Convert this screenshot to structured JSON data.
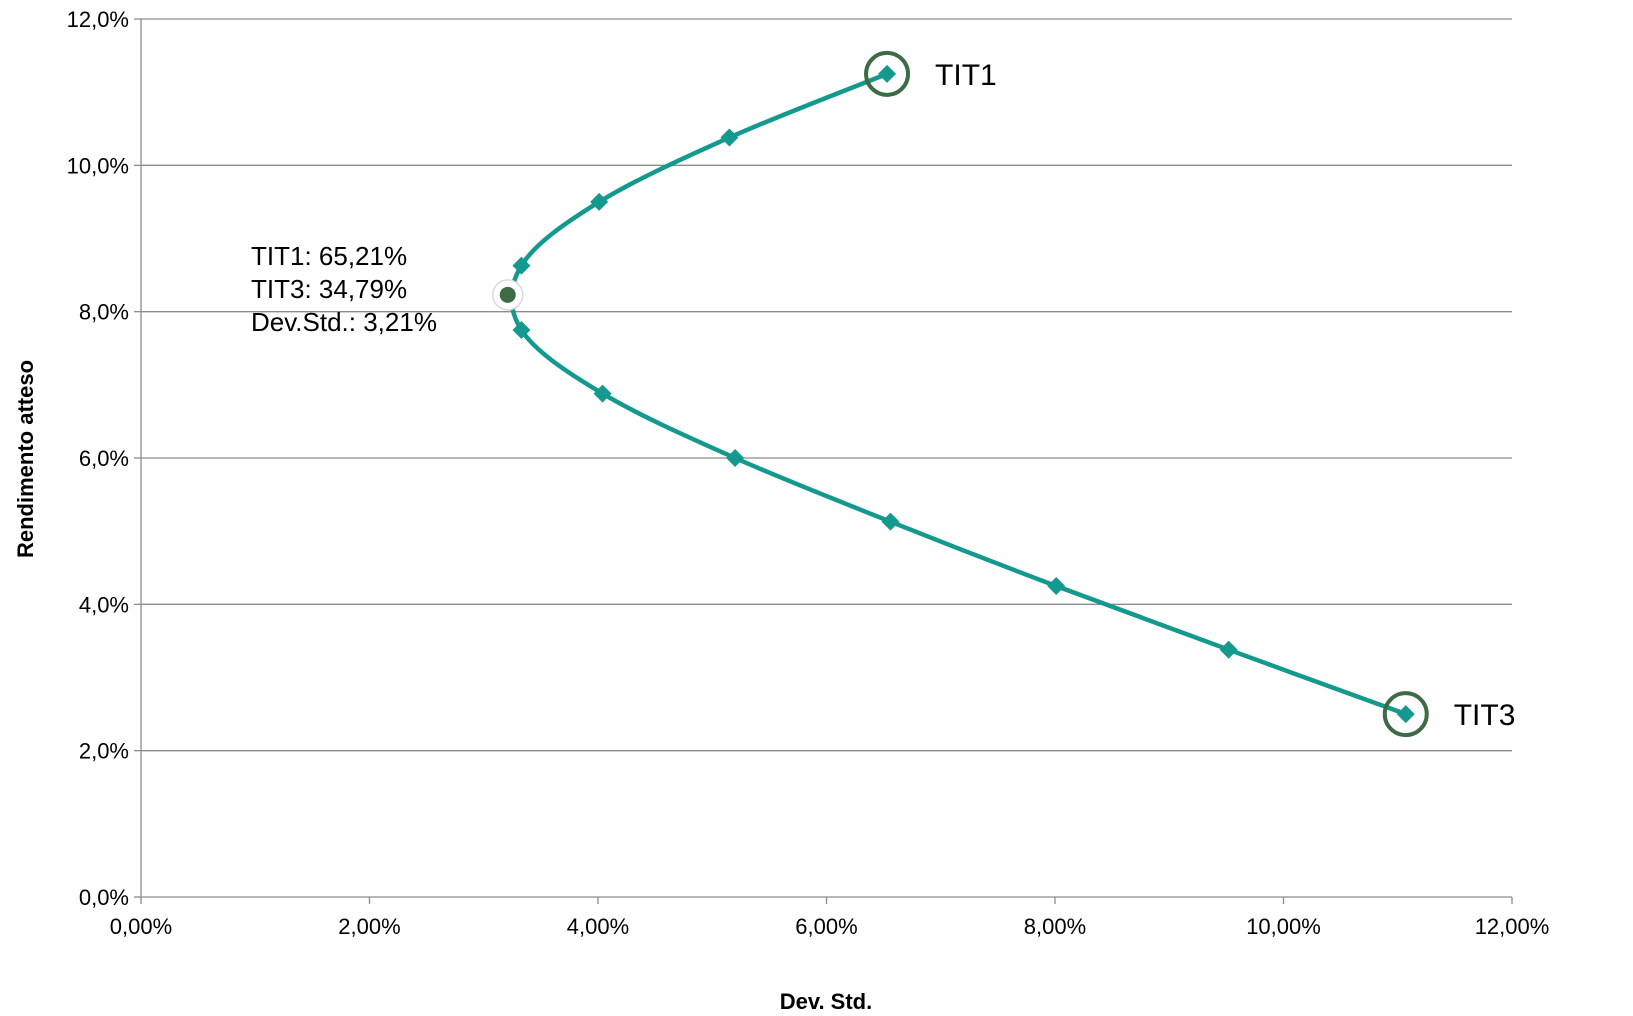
{
  "chart_data": {
    "type": "line",
    "title": "",
    "xlabel": "Dev. Std.",
    "ylabel": "Rendimento atteso",
    "xlim": [
      0,
      0.12
    ],
    "ylim": [
      0,
      0.12
    ],
    "x_ticks": [
      0,
      0.02,
      0.04,
      0.06,
      0.08,
      0.1,
      0.12
    ],
    "x_tick_labels": [
      "0,00%",
      "2,00%",
      "4,00%",
      "6,00%",
      "8,00%",
      "10,00%",
      "12,00%"
    ],
    "y_ticks": [
      0,
      0.02,
      0.04,
      0.06,
      0.08,
      0.1,
      0.12
    ],
    "y_tick_labels": [
      "0,0%",
      "2,0%",
      "4,0%",
      "6,0%",
      "8,0%",
      "10,0%",
      "12,0%"
    ],
    "grid": "horizontal",
    "legend": "none",
    "series": [
      {
        "color": "#14998f",
        "marker": "diamond",
        "points": [
          {
            "x": 0.0653,
            "y": 0.1125
          },
          {
            "x": 0.0515,
            "y": 0.1038
          },
          {
            "x": 0.0401,
            "y": 0.095
          },
          {
            "x": 0.0333,
            "y": 0.0863
          },
          {
            "x": 0.0333,
            "y": 0.0775
          },
          {
            "x": 0.0404,
            "y": 0.0688
          },
          {
            "x": 0.052,
            "y": 0.06
          },
          {
            "x": 0.0656,
            "y": 0.0513
          },
          {
            "x": 0.0801,
            "y": 0.0425
          },
          {
            "x": 0.0952,
            "y": 0.0338
          },
          {
            "x": 0.1107,
            "y": 0.025
          }
        ]
      }
    ],
    "min_variance_point": {
      "x": 0.0321,
      "y": 0.0823,
      "color": "#3d6b45",
      "label_lines": [
        "TIT1: 65,21%",
        "TIT3: 34,79%",
        "Dev.Std.: 3,21%"
      ]
    },
    "callouts": [
      {
        "label": "TIT1",
        "x": 0.0653,
        "y": 0.1125,
        "color": "#3d6b45"
      },
      {
        "label": "TIT3",
        "x": 0.1107,
        "y": 0.025,
        "color": "#3d6b45"
      }
    ]
  }
}
